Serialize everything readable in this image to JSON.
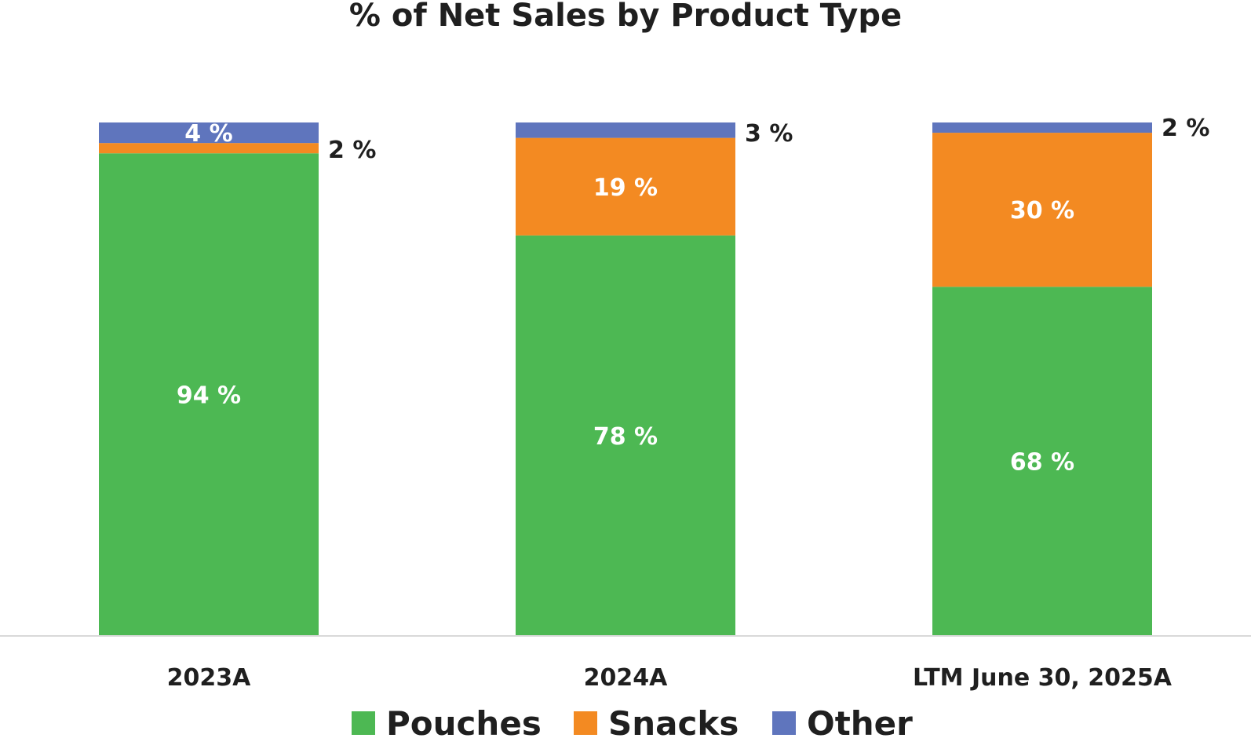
{
  "chart_data": {
    "type": "bar",
    "stacked": true,
    "title": "% of Net Sales by Product Type",
    "categories": [
      "2023A",
      "2024A",
      "LTM June 30, 2025A"
    ],
    "ylim": [
      0,
      100
    ],
    "grid": false,
    "legend_position": "bottom",
    "series": [
      {
        "name": "Pouches",
        "color": "#4db853",
        "values": [
          94,
          78,
          68
        ],
        "labels": [
          "94 %",
          "78 %",
          "68 %"
        ]
      },
      {
        "name": "Snacks",
        "color": "#f38a22",
        "values": [
          2,
          19,
          30
        ],
        "labels": [
          "",
          "19 %",
          "30 %"
        ]
      },
      {
        "name": "Other",
        "color": "#5f75bd",
        "values": [
          4,
          3,
          2
        ],
        "labels": [
          "4 %",
          "",
          ""
        ]
      }
    ],
    "outside_labels": [
      "2 %",
      "3 %",
      "2 %"
    ]
  }
}
